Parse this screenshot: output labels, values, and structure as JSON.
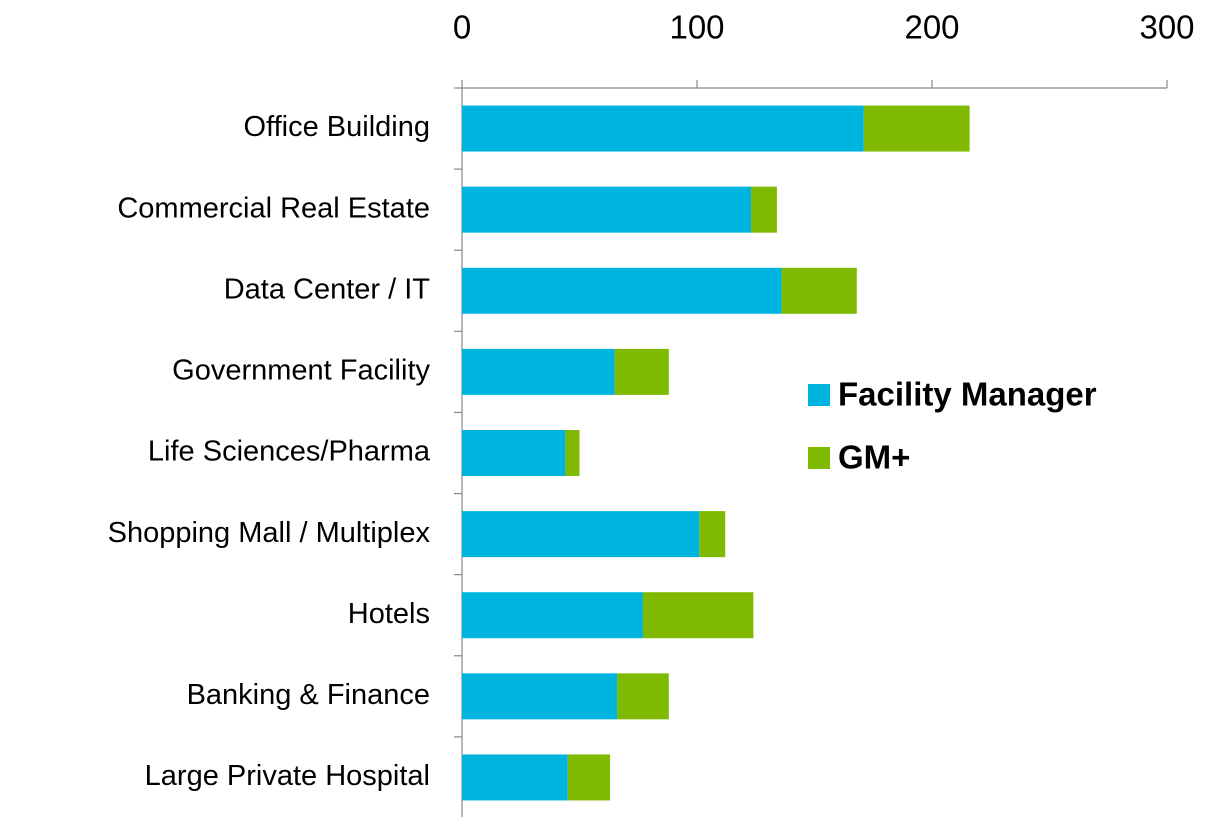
{
  "chart_data": {
    "type": "bar",
    "orientation": "horizontal",
    "stacked": true,
    "categories": [
      "Office Building",
      "Commercial Real Estate",
      "Data Center / IT",
      "Government Facility",
      "Life Sciences/Pharma",
      "Shopping Mall / Multiplex",
      "Hotels",
      "Banking & Finance",
      "Large Private Hospital"
    ],
    "series": [
      {
        "name": "Facility Manager",
        "color": "#00b4e0",
        "values": [
          171,
          123,
          136,
          65,
          44,
          101,
          77,
          66,
          45
        ]
      },
      {
        "name": "GM+",
        "color": "#7fba00",
        "values": [
          45,
          11,
          32,
          23,
          6,
          11,
          47,
          22,
          18
        ]
      }
    ],
    "xlim": [
      0,
      300
    ],
    "xticks": [
      0,
      100,
      200,
      300
    ],
    "grid": false,
    "legend": "right"
  }
}
